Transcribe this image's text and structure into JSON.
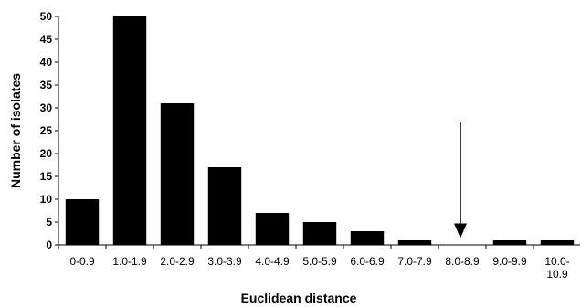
{
  "chart_data": {
    "type": "bar",
    "title": "",
    "xlabel": "Euclidean distance",
    "ylabel": "Number of isolates",
    "ylim": [
      0,
      50
    ],
    "yticks": [
      0,
      5,
      10,
      15,
      20,
      25,
      30,
      35,
      40,
      45,
      50
    ],
    "grid": false,
    "legend": "none",
    "categories": [
      {
        "line1": "0-0.9",
        "line2": ""
      },
      {
        "line1": "1.0-1.9",
        "line2": ""
      },
      {
        "line1": "2.0-2.9",
        "line2": ""
      },
      {
        "line1": "3.0-3.9",
        "line2": ""
      },
      {
        "line1": "4.0-4.9",
        "line2": ""
      },
      {
        "line1": "5.0-5.9",
        "line2": ""
      },
      {
        "line1": "6.0-6.9",
        "line2": ""
      },
      {
        "line1": "7.0-7.9",
        "line2": ""
      },
      {
        "line1": "8.0-8.9",
        "line2": ""
      },
      {
        "line1": "9.0-9.9",
        "line2": ""
      },
      {
        "line1": "10.0-",
        "line2": "10.9"
      }
    ],
    "values": [
      10,
      50,
      31,
      17,
      7,
      5,
      3,
      1,
      0,
      1,
      1
    ],
    "annotation": {
      "type": "arrow",
      "category_index": 8,
      "from_value": 27,
      "to_value": 1.5
    },
    "colors": {
      "bar": "#000000",
      "axis": "#000000",
      "background": "#ffffff"
    }
  }
}
